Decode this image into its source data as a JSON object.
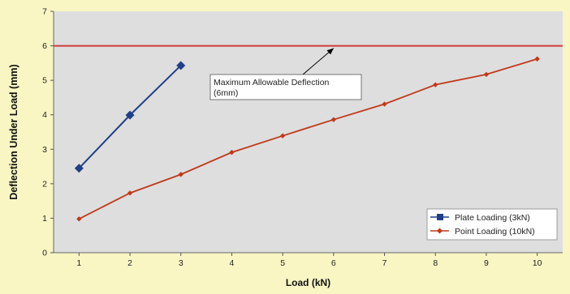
{
  "chart_data": {
    "type": "line",
    "xlabel": "Load (kN)",
    "ylabel": "Deflection Under Load (mm)",
    "xlim": [
      0.5,
      10.5
    ],
    "ylim": [
      0,
      7
    ],
    "x_ticks": [
      "1",
      "2",
      "3",
      "4",
      "5",
      "6",
      "7",
      "8",
      "9",
      "10"
    ],
    "y_ticks": [
      "0",
      "1",
      "2",
      "3",
      "4",
      "5",
      "6",
      "7"
    ],
    "grid": false,
    "legend_position": "bottom-right",
    "threshold": {
      "value": 6,
      "color": "#d23b3b",
      "annotation": "Maximum Allowable Deflection\n(6mm)",
      "annotation_line1": "Maximum Allowable Deflection",
      "annotation_line2": "(6mm)"
    },
    "series": [
      {
        "name": "Plate Loading (3kN)",
        "color": "#1f3f88",
        "marker": "diamond",
        "x": [
          1,
          2,
          3
        ],
        "values": [
          2.45,
          3.99,
          5.43
        ]
      },
      {
        "name": "Point Loading (10kN)",
        "color": "#c0391a",
        "marker": "diamond",
        "x": [
          1,
          2,
          3,
          4,
          5,
          6,
          7,
          8,
          9,
          10
        ],
        "values": [
          0.98,
          1.73,
          2.27,
          2.91,
          3.39,
          3.86,
          4.31,
          4.87,
          5.17,
          5.62
        ]
      }
    ]
  }
}
